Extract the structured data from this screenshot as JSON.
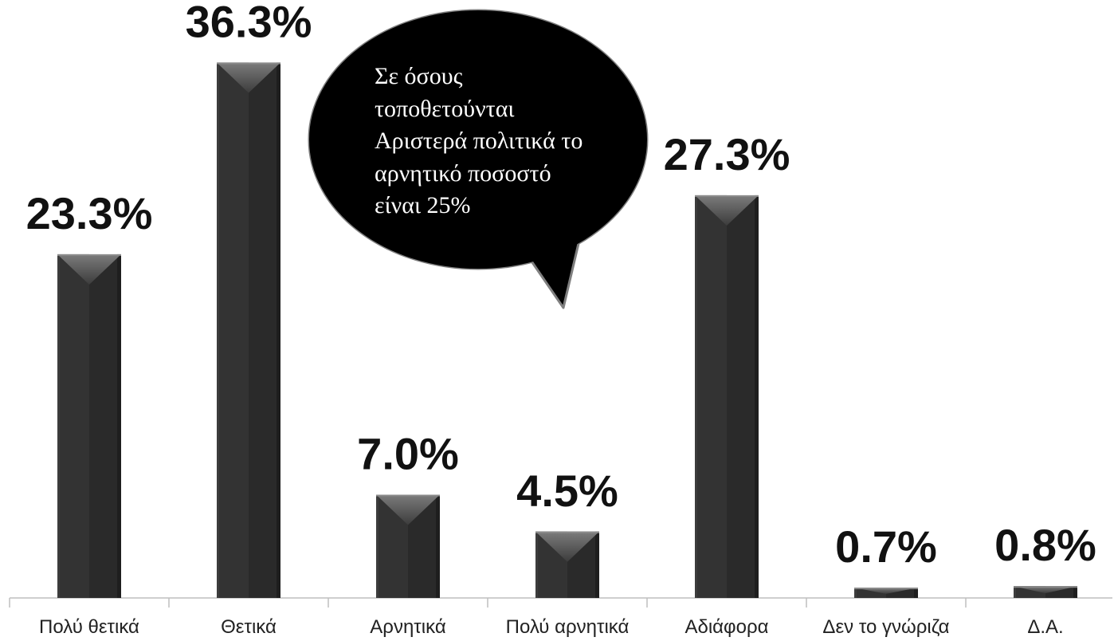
{
  "chart_data": {
    "type": "bar",
    "categories": [
      "Πολύ θετικά",
      "Θετικά",
      "Αρνητικά",
      "Πολύ αρνητικά",
      "Αδιάφορα",
      "Δεν το γνώριζα",
      "Δ.Α."
    ],
    "values": [
      23.3,
      36.3,
      7.0,
      4.5,
      27.3,
      0.7,
      0.8
    ],
    "data_labels": [
      "23.3%",
      "36.3%",
      "7.0%",
      "4.5%",
      "27.3%",
      "0.7%",
      "0.8%"
    ],
    "ylim": [
      0,
      40
    ],
    "grid": false
  },
  "annotation": {
    "lines": [
      "Σε όσους",
      "τοποθετούνται",
      "Αριστερά πολιτικά το",
      "αρνητικό ποσοστό",
      "είναι 25%"
    ]
  },
  "colors": {
    "background": "#ffffff",
    "bar": "#2a2a2a",
    "bar_left_half": "#333333",
    "bar_right_edge": "#1e1e1e",
    "bar_left_edge": "#3c3c3c",
    "bar_highlight": "#8a8a8a",
    "axis": "#bfbfbf",
    "label": "#111111",
    "bubble": "#000000",
    "bubble_outline": "#7f7f7f",
    "bubble_text": "#ffffff"
  }
}
